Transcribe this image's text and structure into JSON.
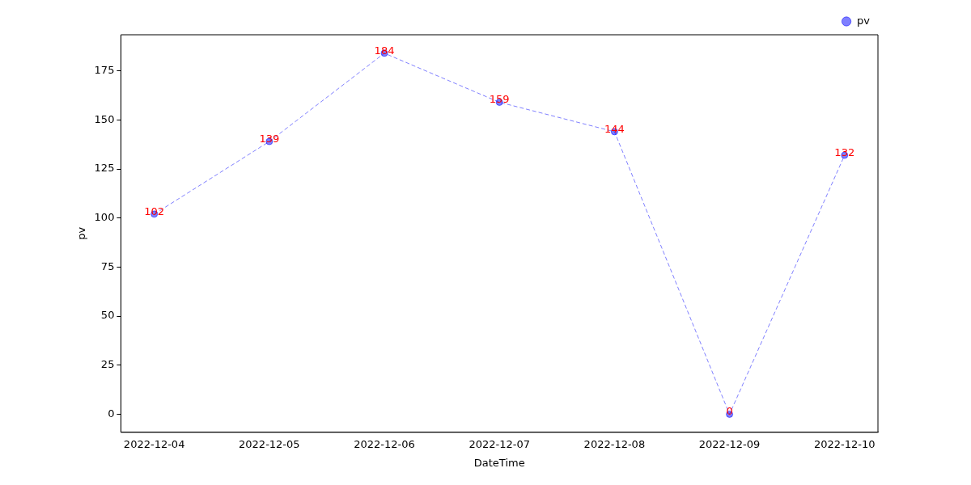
{
  "chart_data": {
    "type": "line",
    "xlabel": "DateTime",
    "ylabel": "pv",
    "categories": [
      "2022-12-04",
      "2022-12-05",
      "2022-12-06",
      "2022-12-07",
      "2022-12-08",
      "2022-12-09",
      "2022-12-10"
    ],
    "series": [
      {
        "name": "pv",
        "color": "#0000ff",
        "values": [
          102,
          139,
          184,
          159,
          144,
          0,
          132
        ]
      }
    ],
    "ylim": [
      -9.2,
      193.4
    ],
    "yticks": [
      0,
      25,
      50,
      75,
      100,
      125,
      150,
      175
    ],
    "grid": false,
    "legend": "top right",
    "marker": "circle",
    "line_style": "dashed",
    "data_labels": true
  }
}
